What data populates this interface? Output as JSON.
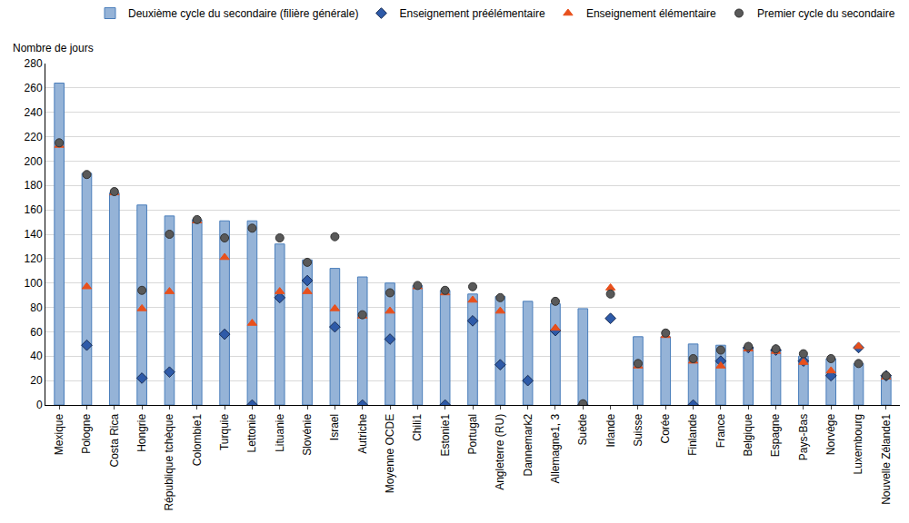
{
  "chart_data": {
    "type": "bar",
    "ylabel": "Nombre de jours",
    "categories": [
      "Mexique",
      "Pologne",
      "Costa Rica",
      "Hongrie",
      "République tchèque",
      "Colombie1",
      "Turquie",
      "Lettonie",
      "Lituanie",
      "Slovénie",
      "Israel",
      "Autriche",
      "Moyenne OCDE",
      "Chili1",
      "Estonie1",
      "Portugal",
      "Angleterre (RU)",
      "Dannemark2",
      "Allemagne1, 3",
      "Suède",
      "Irlande",
      "Suisse",
      "Corée",
      "Finlande",
      "France",
      "Belgique",
      "Espagne",
      "Pays-Bas",
      "Norvège",
      "Luxembourg",
      "Nouvelle Zélande1"
    ],
    "series": [
      {
        "name": "Deuxième cycle du secondaire (filière générale)",
        "type": "bar",
        "color": "#95b3d7",
        "values": [
          264,
          190,
          174,
          164,
          155,
          152,
          151,
          151,
          132,
          119,
          112,
          105,
          100,
          98,
          94,
          91,
          89,
          85,
          83,
          79,
          null,
          56,
          56,
          50,
          49,
          47,
          45,
          40,
          38,
          34,
          23
        ]
      },
      {
        "name": "Enseignement préélémentaire",
        "type": "scatter",
        "marker": "diamond",
        "color": "#2e5aa8",
        "values": [
          null,
          49,
          null,
          22,
          27,
          null,
          58,
          0,
          88,
          102,
          64,
          0,
          54,
          null,
          0,
          69,
          33,
          20,
          61,
          0,
          71,
          null,
          null,
          0,
          36,
          47,
          45,
          36,
          24,
          47,
          24
        ]
      },
      {
        "name": "Enseignement élémentaire",
        "type": "scatter",
        "marker": "triangle-up",
        "color": "#e8501c",
        "values": [
          213,
          97,
          174,
          79,
          93,
          151,
          121,
          67,
          93,
          93,
          79,
          73,
          77,
          97,
          92,
          86,
          77,
          null,
          63,
          0,
          96,
          32,
          57,
          36,
          32,
          46,
          44,
          35,
          28,
          48,
          23
        ]
      },
      {
        "name": "Premier cycle du secondaire",
        "type": "scatter",
        "marker": "circle",
        "color": "#595959",
        "values": [
          215,
          189,
          175,
          94,
          140,
          152,
          137,
          145,
          137,
          117,
          138,
          74,
          92,
          98,
          94,
          97,
          88,
          null,
          85,
          1,
          91,
          34,
          59,
          38,
          45,
          48,
          46,
          42,
          38,
          34,
          24
        ]
      }
    ],
    "ylim": [
      0,
      280
    ],
    "yticks": [
      0,
      20,
      40,
      60,
      80,
      100,
      120,
      140,
      160,
      180,
      200,
      220,
      240,
      260,
      280
    ],
    "grid": true,
    "legend": "top"
  }
}
